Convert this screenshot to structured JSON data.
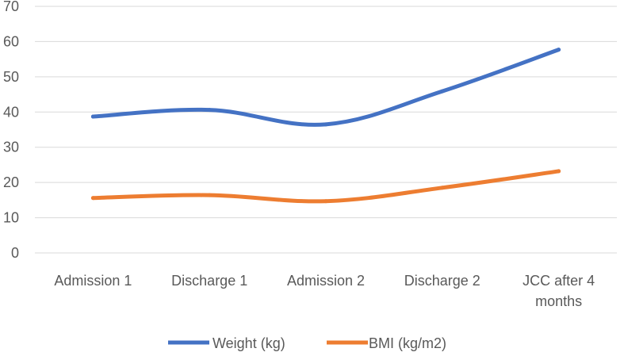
{
  "chart_data": {
    "type": "line",
    "title": "",
    "xlabel": "",
    "ylabel": "",
    "ylim": [
      0,
      70
    ],
    "yticks": [
      0,
      10,
      20,
      30,
      40,
      50,
      60,
      70
    ],
    "grid": true,
    "legend_position": "bottom",
    "categories": [
      [
        "Admission 1"
      ],
      [
        "Discharge 1"
      ],
      [
        "Admission 2"
      ],
      [
        "Discharge 2"
      ],
      [
        "JCC after 4",
        "months"
      ]
    ],
    "series": [
      {
        "name": "Weight (kg)",
        "color": "#4472C4",
        "values": [
          38.7,
          40.6,
          36.5,
          45.9,
          57.7
        ]
      },
      {
        "name": "BMI (kg/m2)",
        "color": "#ED7D31",
        "values": [
          15.6,
          16.4,
          14.7,
          18.5,
          23.2
        ]
      }
    ]
  }
}
